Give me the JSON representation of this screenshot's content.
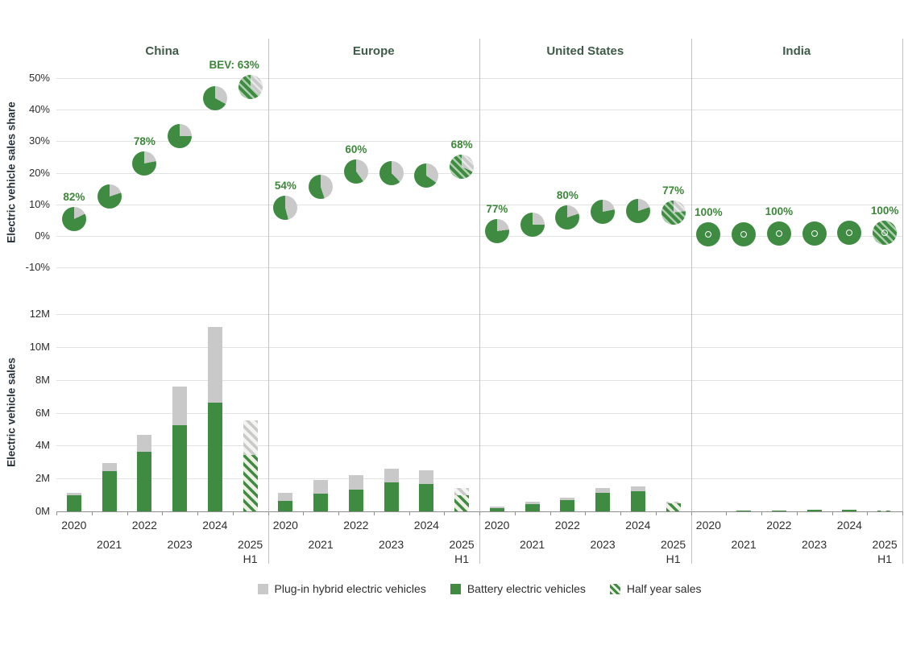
{
  "colors": {
    "green": "#3f8b42",
    "gray": "#c9c9c9",
    "label_green": "#3c8639",
    "region_title": "#3e5a49",
    "gridline": "#e2e2e2",
    "separator": "#c2c2c2",
    "axis_line": "#8f8f8f",
    "hatch_light_green": "#eef0e4",
    "hatch_light_gray": "#f4f4f2"
  },
  "legend": {
    "items": [
      {
        "label": "Plug-in hybrid electric vehicles",
        "swatch": "gray"
      },
      {
        "label": "Battery electric vehicles",
        "swatch": "green"
      },
      {
        "label": "Half year sales",
        "swatch": "hatch-green"
      }
    ]
  },
  "chart_data": [
    {
      "type": "scatter",
      "subtype": "pie-markers",
      "ylabel": "Electric vehicle sales share",
      "ylim": [
        -10,
        50
      ],
      "yticks": [
        "50%",
        "40%",
        "30%",
        "20%",
        "10%",
        "0%",
        "-10%"
      ],
      "ytick_values": [
        50,
        40,
        30,
        20,
        10,
        0,
        -10
      ],
      "x_categories": [
        "2020",
        "2021",
        "2022",
        "2023",
        "2024",
        "2025 H1"
      ],
      "legend_position": "bottom",
      "grid": true,
      "regions": [
        {
          "name": "China",
          "ev_share_pct": [
            5.3,
            12.5,
            23,
            31.5,
            43.5,
            47.3
          ],
          "bev_share_of_ev_pct": [
            82,
            80,
            78,
            75,
            67,
            63
          ],
          "half_year_index": 5,
          "annotations": [
            {
              "x_index": 0,
              "text": "82%",
              "dx": 0
            },
            {
              "x_index": 2,
              "text": "78%",
              "dx": 0
            },
            {
              "x_index": 5,
              "text": "BEV: 63%",
              "dx": -20
            }
          ]
        },
        {
          "name": "Europe",
          "ev_share_pct": [
            9,
            15.5,
            20.5,
            20,
            19,
            22
          ],
          "bev_share_of_ev_pct": [
            54,
            55,
            60,
            62,
            65,
            68
          ],
          "half_year_index": 5,
          "annotations": [
            {
              "x_index": 0,
              "text": "54%",
              "dx": 0
            },
            {
              "x_index": 2,
              "text": "60%",
              "dx": 0
            },
            {
              "x_index": 5,
              "text": "68%",
              "dx": 0
            }
          ]
        },
        {
          "name": "United States",
          "ev_share_pct": [
            1.5,
            3.5,
            5.8,
            7.6,
            8,
            7.3
          ],
          "bev_share_of_ev_pct": [
            77,
            75,
            80,
            78,
            80,
            77
          ],
          "half_year_index": 5,
          "annotations": [
            {
              "x_index": 0,
              "text": "77%",
              "dx": 0
            },
            {
              "x_index": 2,
              "text": "80%",
              "dx": 0
            },
            {
              "x_index": 5,
              "text": "77%",
              "dx": 0
            }
          ]
        },
        {
          "name": "India",
          "ev_share_pct": [
            0.5,
            0.5,
            0.8,
            0.8,
            1,
            1
          ],
          "bev_share_of_ev_pct": [
            100,
            100,
            100,
            100,
            100,
            100
          ],
          "donut_hole": true,
          "half_year_index": 5,
          "annotations": [
            {
              "x_index": 0,
              "text": "100%",
              "dx": 0
            },
            {
              "x_index": 2,
              "text": "100%",
              "dx": 0
            },
            {
              "x_index": 5,
              "text": "100%",
              "dx": 0
            }
          ]
        }
      ]
    },
    {
      "type": "bar",
      "stacked": true,
      "ylabel": "Electric vehicle sales",
      "ylim_millions": [
        0,
        12
      ],
      "yticks": [
        "12M",
        "10M",
        "8M",
        "6M",
        "4M",
        "2M",
        "0M"
      ],
      "ytick_values": [
        12,
        10,
        8,
        6,
        4,
        2,
        0
      ],
      "x_categories": [
        "2020",
        "2021",
        "2022",
        "2023",
        "2024",
        "2025 H1"
      ],
      "grid": true,
      "regions": [
        {
          "name": "China",
          "bev_m": [
            0.98,
            2.45,
            3.62,
            5.24,
            6.6,
            3.43
          ],
          "phev_m": [
            0.15,
            0.49,
            1.03,
            2.35,
            4.6,
            2.1
          ],
          "half_year_index": 5
        },
        {
          "name": "Europe",
          "bev_m": [
            0.64,
            1.08,
            1.32,
            1.76,
            1.66,
            0.98
          ],
          "phev_m": [
            0.49,
            0.82,
            0.88,
            0.84,
            0.84,
            0.44
          ],
          "half_year_index": 5
        },
        {
          "name": "United States",
          "bev_m": [
            0.22,
            0.44,
            0.69,
            1.13,
            1.22,
            0.49
          ],
          "phev_m": [
            0.08,
            0.15,
            0.14,
            0.29,
            0.28,
            0.1
          ],
          "half_year_index": 5
        },
        {
          "name": "India",
          "bev_m": [
            0.005,
            0.02,
            0.05,
            0.08,
            0.1,
            0.06
          ],
          "phev_m": [
            0,
            0,
            0.005,
            0.005,
            0.01,
            0.005
          ],
          "half_year_index": 5
        }
      ]
    }
  ]
}
